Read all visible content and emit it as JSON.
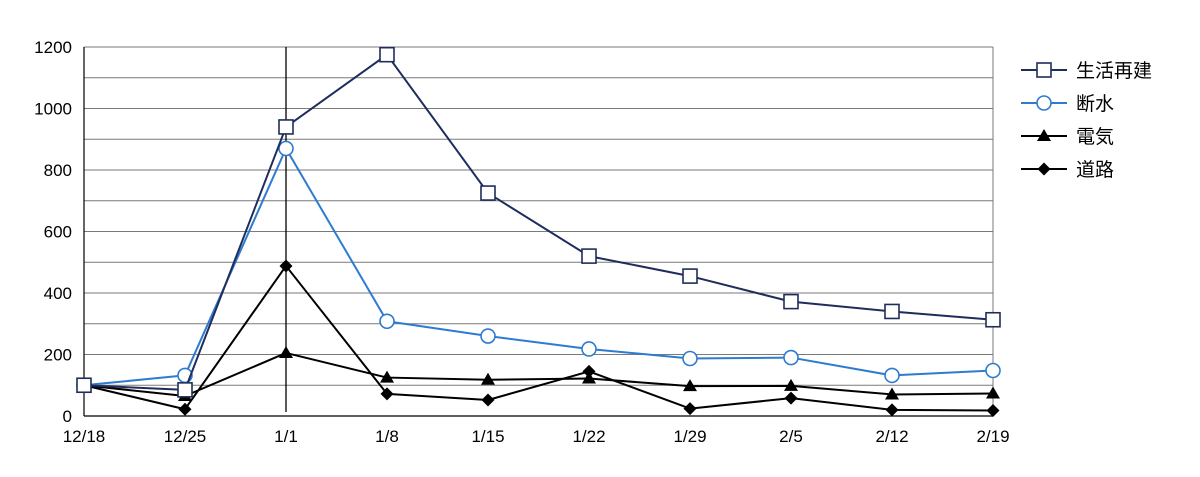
{
  "chart_data": {
    "type": "line",
    "title": "",
    "xlabel": "",
    "ylabel": "",
    "categories": [
      "12/18",
      "12/25",
      "1/1",
      "1/8",
      "1/15",
      "1/22",
      "1/29",
      "2/5",
      "2/12",
      "2/19"
    ],
    "ylim": [
      0,
      1200
    ],
    "yticks": [
      "0",
      "200",
      "400",
      "600",
      "800",
      "1000",
      "1200"
    ],
    "grid": true,
    "legend_position": "right",
    "annotation_marker_category": "1/1",
    "series": [
      {
        "name": "生活再建",
        "marker": "square",
        "color": "#1f2d5c",
        "values": [
          100,
          85,
          940,
          1175,
          725,
          520,
          455,
          372,
          340,
          313
        ]
      },
      {
        "name": "断水",
        "marker": "circle",
        "color": "#2e7bcf",
        "values": [
          100,
          132,
          870,
          308,
          260,
          218,
          187,
          190,
          132,
          148
        ]
      },
      {
        "name": "電気",
        "marker": "triangle",
        "color": "#000000",
        "values": [
          100,
          65,
          205,
          125,
          118,
          122,
          97,
          98,
          70,
          73
        ]
      },
      {
        "name": "道路",
        "marker": "diamond",
        "color": "#000000",
        "values": [
          100,
          22,
          488,
          72,
          52,
          145,
          24,
          58,
          20,
          18
        ]
      }
    ]
  }
}
